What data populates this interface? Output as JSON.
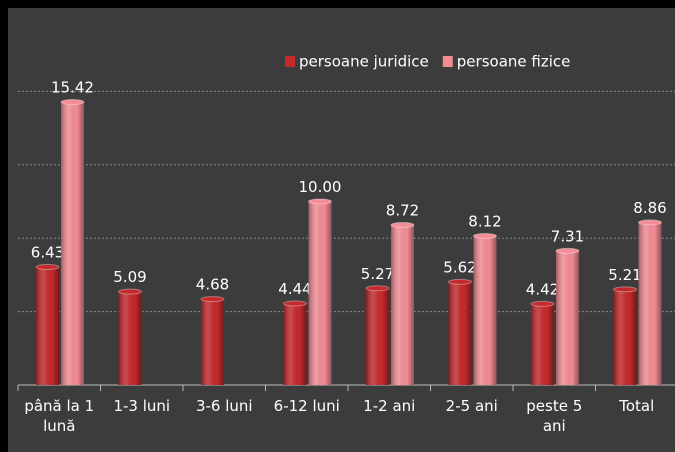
{
  "chart_data": {
    "type": "bar",
    "categories": [
      "până la 1 lună",
      "1-3 luni",
      "3-6 luni",
      "6-12 luni",
      "1-2 ani",
      "2-5 ani",
      "peste 5 ani",
      "Total"
    ],
    "series": [
      {
        "name": "persoane juridice",
        "color": "#c42a2c",
        "values": [
          6.43,
          5.09,
          4.68,
          4.44,
          5.27,
          5.62,
          4.42,
          5.21
        ],
        "value_labels": [
          "6.43",
          "5.09",
          "4.68",
          "4.44",
          "5.27",
          "5.62",
          "4.42",
          "5.21"
        ]
      },
      {
        "name": "persoane fizice",
        "color": "#f28c95",
        "values": [
          15.42,
          null,
          null,
          10.0,
          8.72,
          8.12,
          7.31,
          8.86
        ],
        "value_labels": [
          "15.42",
          null,
          null,
          "10.00",
          "8.72",
          "8.12",
          "7.31",
          "8.86"
        ]
      }
    ],
    "ylim": [
      0,
      20
    ],
    "yticks": [
      4,
      8,
      12,
      16
    ],
    "grid": true,
    "legend": "top-right"
  }
}
